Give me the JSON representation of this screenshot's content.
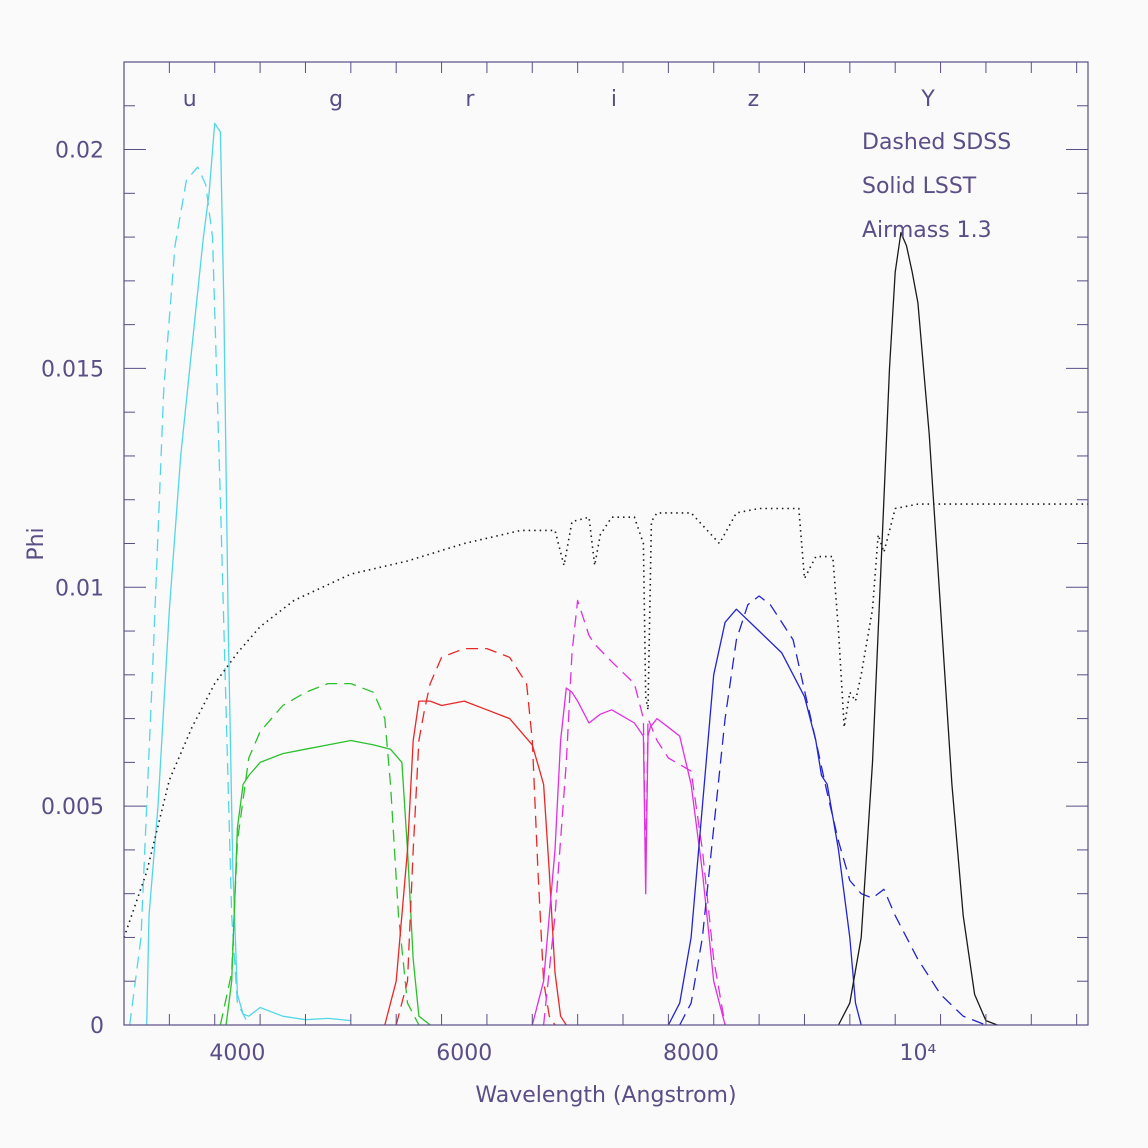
{
  "chart_data": {
    "type": "line",
    "title": "",
    "xlabel": "Wavelength (Angstrom)",
    "ylabel": "Phi",
    "xlim": [
      3000,
      11500
    ],
    "ylim": [
      0,
      0.022
    ],
    "grid": false,
    "x_ticks": [
      {
        "value": 4000,
        "label": "4000"
      },
      {
        "value": 6000,
        "label": "6000"
      },
      {
        "value": 8000,
        "label": "8000"
      },
      {
        "value": 10000,
        "label": "10⁴"
      }
    ],
    "y_ticks": [
      {
        "value": 0,
        "label": "0"
      },
      {
        "value": 0.005,
        "label": "0.005"
      },
      {
        "value": 0.01,
        "label": "0.01"
      },
      {
        "value": 0.015,
        "label": "0.015"
      },
      {
        "value": 0.02,
        "label": "0.02"
      }
    ],
    "band_labels": [
      {
        "label": "u",
        "x": 3580
      },
      {
        "label": "g",
        "x": 4870
      },
      {
        "label": "r",
        "x": 6050
      },
      {
        "label": "i",
        "x": 7320
      },
      {
        "label": "z",
        "x": 8550
      },
      {
        "label": "Y",
        "x": 10090
      }
    ],
    "annotations": [
      "Dashed SDSS",
      "Solid LSST",
      "Airmass 1.3"
    ],
    "series": [
      {
        "style": "solid",
        "color": "#53d6e6",
        "x": [
          3200,
          3220,
          3300,
          3400,
          3500,
          3600,
          3700,
          3750,
          3800,
          3850,
          3880,
          3920,
          3960,
          4000,
          4050,
          4100,
          4200,
          4400,
          4600,
          4800,
          5000
        ],
        "y": [
          0,
          0.0025,
          0.005,
          0.0095,
          0.013,
          0.0155,
          0.018,
          0.019,
          0.0206,
          0.0204,
          0.0165,
          0.009,
          0.0035,
          0.0007,
          0.00025,
          0.0002,
          0.0004,
          0.0002,
          0.00012,
          0.00015,
          0.0001
        ]
      },
      {
        "style": "dashed",
        "color": "#53d6e6",
        "x": [
          3050,
          3150,
          3250,
          3350,
          3450,
          3550,
          3650,
          3720,
          3780,
          3850,
          3950,
          4000,
          4100
        ],
        "y": [
          0,
          0.002,
          0.008,
          0.0145,
          0.0178,
          0.0193,
          0.0196,
          0.0192,
          0.018,
          0.012,
          0.0025,
          0.0005,
          0
        ]
      },
      {
        "style": "solid",
        "color": "#2cc02c",
        "x": [
          3900,
          3950,
          4000,
          4050,
          4100,
          4200,
          4400,
          4600,
          4800,
          5000,
          5200,
          5350,
          5450,
          5500,
          5550,
          5600,
          5700
        ],
        "y": [
          0,
          0.001,
          0.0045,
          0.0055,
          0.0057,
          0.006,
          0.0062,
          0.0063,
          0.0064,
          0.0065,
          0.0064,
          0.0063,
          0.006,
          0.004,
          0.0015,
          0.0002,
          0
        ]
      },
      {
        "style": "dashed",
        "color": "#2cc02c",
        "x": [
          3850,
          3950,
          4000,
          4100,
          4200,
          4400,
          4600,
          4800,
          5000,
          5200,
          5300,
          5350,
          5420,
          5500,
          5600
        ],
        "y": [
          0,
          0.0012,
          0.0042,
          0.0061,
          0.0067,
          0.0073,
          0.0076,
          0.0078,
          0.0078,
          0.0076,
          0.007,
          0.0055,
          0.0025,
          0.0005,
          0
        ]
      },
      {
        "style": "solid",
        "color": "#e82828",
        "x": [
          5300,
          5400,
          5500,
          5550,
          5600,
          5700,
          5800,
          6000,
          6200,
          6400,
          6600,
          6700,
          6750,
          6800,
          6850,
          6900
        ],
        "y": [
          0,
          0.001,
          0.004,
          0.0065,
          0.0074,
          0.0074,
          0.0073,
          0.0074,
          0.0072,
          0.007,
          0.0064,
          0.0055,
          0.0035,
          0.0012,
          0.0002,
          0
        ]
      },
      {
        "style": "dashed",
        "color": "#e82828",
        "x": [
          5400,
          5500,
          5550,
          5600,
          5650,
          5700,
          5800,
          6000,
          6200,
          6400,
          6550,
          6600,
          6650,
          6700,
          6750,
          6800
        ],
        "y": [
          0,
          0.001,
          0.004,
          0.0065,
          0.0072,
          0.0078,
          0.0084,
          0.0086,
          0.0086,
          0.0084,
          0.0078,
          0.0065,
          0.0035,
          0.001,
          0.0002,
          0
        ]
      },
      {
        "style": "solid",
        "color": "#e030e0",
        "x": [
          6600,
          6700,
          6800,
          6850,
          6900,
          6950,
          7000,
          7100,
          7200,
          7300,
          7500,
          7580,
          7600,
          7620,
          7640,
          7700,
          7800,
          7900,
          8000,
          8100,
          8200,
          8300
        ],
        "y": [
          0,
          0.001,
          0.004,
          0.0065,
          0.0077,
          0.0076,
          0.0074,
          0.0069,
          0.0071,
          0.0072,
          0.0069,
          0.0066,
          0.003,
          0.0066,
          0.0068,
          0.007,
          0.0068,
          0.0066,
          0.0055,
          0.0035,
          0.001,
          0
        ]
      },
      {
        "style": "dashed",
        "color": "#e030e0",
        "x": [
          6700,
          6800,
          6900,
          6950,
          7000,
          7050,
          7100,
          7150,
          7300,
          7500,
          7580,
          7600,
          7620,
          7700,
          7800,
          8000,
          8100,
          8200,
          8300
        ],
        "y": [
          0,
          0.0025,
          0.006,
          0.0085,
          0.0097,
          0.0093,
          0.0089,
          0.0087,
          0.0083,
          0.0078,
          0.007,
          0.0035,
          0.007,
          0.0065,
          0.0061,
          0.0058,
          0.004,
          0.0015,
          0
        ]
      },
      {
        "style": "solid",
        "color": "#2424d0",
        "x": [
          7800,
          7900,
          8000,
          8100,
          8200,
          8300,
          8400,
          8600,
          8800,
          9000,
          9100,
          9150,
          9200,
          9300,
          9400,
          9450,
          9500
        ],
        "y": [
          0,
          0.0005,
          0.002,
          0.005,
          0.008,
          0.0092,
          0.0095,
          0.009,
          0.0085,
          0.0075,
          0.0065,
          0.0057,
          0.0055,
          0.004,
          0.002,
          0.0005,
          0
        ]
      },
      {
        "style": "dashed",
        "color": "#2424d0",
        "x": [
          7900,
          8000,
          8100,
          8200,
          8300,
          8400,
          8500,
          8600,
          8700,
          8900,
          9100,
          9200,
          9300,
          9400,
          9500,
          9600,
          9700,
          9800,
          10000,
          10200,
          10400,
          10600
        ],
        "y": [
          0,
          0.0005,
          0.002,
          0.0045,
          0.007,
          0.0088,
          0.0096,
          0.0098,
          0.0096,
          0.0088,
          0.0065,
          0.0053,
          0.0042,
          0.0033,
          0.003,
          0.0029,
          0.0031,
          0.0025,
          0.0015,
          0.0007,
          0.0002,
          0
        ]
      },
      {
        "style": "solid",
        "color": "#1a1a1a",
        "x": [
          9300,
          9400,
          9500,
          9600,
          9700,
          9750,
          9800,
          9850,
          9900,
          9950,
          10000,
          10100,
          10200,
          10300,
          10400,
          10500,
          10600,
          10700
        ],
        "y": [
          0,
          0.0005,
          0.002,
          0.006,
          0.012,
          0.015,
          0.0172,
          0.0181,
          0.0178,
          0.0172,
          0.0165,
          0.0135,
          0.0095,
          0.0055,
          0.0025,
          0.0007,
          0.0001,
          0
        ]
      },
      {
        "style": "dotted",
        "color": "#1a1a1a",
        "x": [
          3000,
          3200,
          3400,
          3600,
          3800,
          4000,
          4200,
          4500,
          5000,
          5500,
          6000,
          6500,
          6800,
          6880,
          6950,
          7100,
          7150,
          7200,
          7300,
          7500,
          7580,
          7600,
          7620,
          7650,
          7700,
          8000,
          8250,
          8400,
          8600,
          8800,
          8950,
          9000,
          9100,
          9250,
          9300,
          9350,
          9400,
          9450,
          9500,
          9600,
          9650,
          9700,
          9800,
          10000,
          10500,
          11000,
          11500
        ],
        "y": [
          0.002,
          0.0035,
          0.0056,
          0.0068,
          0.0078,
          0.0085,
          0.0091,
          0.0097,
          0.0103,
          0.0106,
          0.011,
          0.0113,
          0.0113,
          0.0105,
          0.0115,
          0.0116,
          0.0105,
          0.0112,
          0.0116,
          0.0116,
          0.011,
          0.0075,
          0.0072,
          0.0115,
          0.0117,
          0.0117,
          0.011,
          0.0117,
          0.0118,
          0.0118,
          0.0118,
          0.0102,
          0.0107,
          0.0107,
          0.009,
          0.0068,
          0.0076,
          0.0074,
          0.008,
          0.0095,
          0.0112,
          0.0108,
          0.0118,
          0.0119,
          0.0119,
          0.0119,
          0.0119
        ]
      }
    ]
  }
}
